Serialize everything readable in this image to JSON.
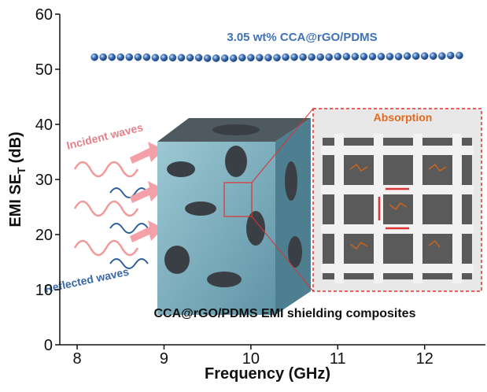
{
  "chart_data": {
    "type": "scatter",
    "x_label": "Frequency (GHz)",
    "y_label": "EMI SE",
    "y_label_subscript": "T",
    "y_label_unit": "(dB)",
    "xlim": [
      7.8,
      12.7
    ],
    "xticks": [
      8,
      9,
      10,
      11,
      12
    ],
    "ylim": [
      0,
      60
    ],
    "yticks": [
      0,
      10,
      20,
      30,
      40,
      50,
      60
    ],
    "series": [
      {
        "name": "3.05 wt% CCA@rGO/PDMS",
        "color": "#3f72b8",
        "x": [
          8.2,
          8.3,
          8.4,
          8.5,
          8.6,
          8.7,
          8.8,
          8.9,
          9.0,
          9.1,
          9.2,
          9.3,
          9.4,
          9.5,
          9.6,
          9.7,
          9.8,
          9.9,
          10.0,
          10.1,
          10.2,
          10.3,
          10.4,
          10.5,
          10.6,
          10.7,
          10.8,
          10.9,
          11.0,
          11.1,
          11.2,
          11.3,
          11.4,
          11.5,
          11.6,
          11.7,
          11.8,
          11.9,
          12.0,
          12.1,
          12.2,
          12.3,
          12.4
        ],
        "values": [
          52.2,
          52.2,
          52.2,
          52.2,
          52.2,
          52.2,
          52.2,
          52.1,
          52.1,
          52.1,
          52.1,
          52.1,
          52.1,
          52.0,
          52.0,
          52.0,
          52.0,
          52.1,
          52.1,
          52.1,
          52.1,
          52.1,
          52.2,
          52.2,
          52.2,
          52.2,
          52.2,
          52.2,
          52.3,
          52.3,
          52.3,
          52.3,
          52.3,
          52.3,
          52.3,
          52.3,
          52.4,
          52.4,
          52.4,
          52.4,
          52.4,
          52.5,
          52.5
        ]
      }
    ],
    "annotations": {
      "incident": "Incident waves",
      "reflected": "Reflected waves",
      "absorption": "Absorption",
      "composite": "CCA@rGO/PDMS EMI shielding composites"
    }
  }
}
